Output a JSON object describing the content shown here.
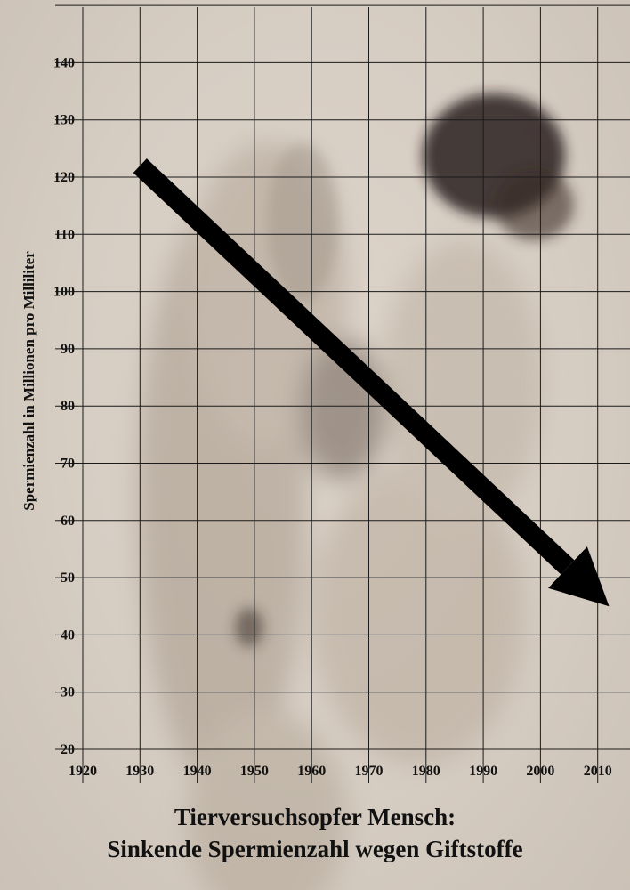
{
  "chart_data": {
    "type": "line",
    "title": "",
    "xlabel": "",
    "ylabel": "Spermienzahl in Millionen pro Milliliter",
    "x_ticks": [
      1920,
      1930,
      1940,
      1950,
      1960,
      1970,
      1980,
      1990,
      2000,
      2010
    ],
    "y_ticks": [
      20,
      30,
      40,
      50,
      60,
      70,
      80,
      90,
      100,
      110,
      120,
      130,
      140
    ],
    "xlim": [
      1915,
      2024
    ],
    "ylim": [
      18,
      152
    ],
    "grid": true,
    "series": [
      {
        "x": [
          1930,
          2012
        ],
        "y": [
          122,
          45
        ],
        "style": "thick black arrow",
        "color": "#000000"
      }
    ]
  },
  "caption": {
    "line1": "Tierversuchsopfer Mensch:",
    "line2": "Sinkende Spermienzahl wegen Giftstoffe"
  },
  "colors": {
    "background": "#d8cfc5",
    "grid": "#1a1a1a",
    "text": "#111111"
  }
}
